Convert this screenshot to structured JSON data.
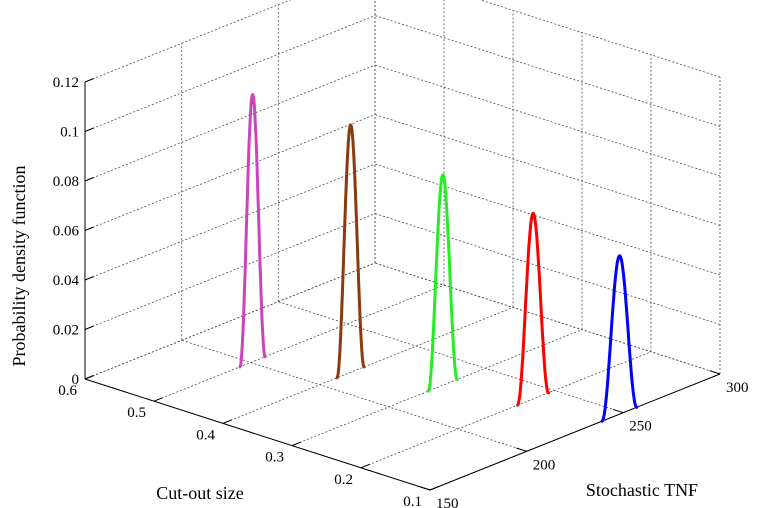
{
  "chart_data": {
    "type": "line",
    "projection": "3d",
    "title": "",
    "xlabel": "Stochastic TNF",
    "ylabel": "Cut-out size",
    "zlabel": "Probability density function",
    "xlim": [
      150,
      300
    ],
    "ylim": [
      0.1,
      0.6
    ],
    "zlim": [
      0,
      0.12
    ],
    "xticks": [
      "150",
      "200",
      "250",
      "300"
    ],
    "yticks": [
      "0.1",
      "0.2",
      "0.3",
      "0.4",
      "0.5",
      "0.6"
    ],
    "zticks": [
      "0",
      "0.02",
      "0.04",
      "0.06",
      "0.08",
      "0.1",
      "0.12"
    ],
    "grid": true,
    "series": [
      {
        "color": "#cc44bb",
        "cutout": 0.5,
        "center": 201,
        "halfwidth": 6.5,
        "peak": 0.108
      },
      {
        "color": "#8b3a0f",
        "cutout": 0.4,
        "center": 216,
        "halfwidth": 7,
        "peak": 0.1
      },
      {
        "color": "#22ee22",
        "cutout": 0.3,
        "center": 228,
        "halfwidth": 7.5,
        "peak": 0.085
      },
      {
        "color": "#ff0000",
        "cutout": 0.2,
        "center": 239,
        "halfwidth": 8,
        "peak": 0.075
      },
      {
        "color": "#0000ff",
        "cutout": 0.1,
        "center": 248,
        "halfwidth": 9,
        "peak": 0.064
      }
    ]
  }
}
